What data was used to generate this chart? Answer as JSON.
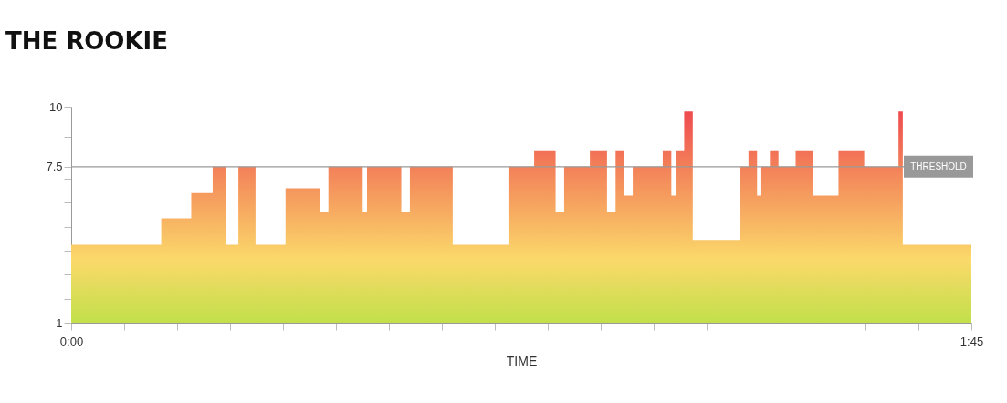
{
  "chart_data": {
    "type": "area",
    "title": "THE ROOKIE",
    "xlabel": "TIME",
    "x": [
      0,
      10.5,
      10.5,
      14,
      14,
      16.5,
      16.5,
      18,
      18,
      19.5,
      19.5,
      21.5,
      21.5,
      25,
      25,
      29,
      29,
      30,
      30,
      34,
      34,
      34.5,
      34.5,
      38.5,
      38.5,
      39.5,
      39.5,
      44.5,
      44.5,
      51,
      51,
      54,
      54,
      56.5,
      56.5,
      57.5,
      57.5,
      60.5,
      60.5,
      62.5,
      62.5,
      63.5,
      63.5,
      64.5,
      64.5,
      65.5,
      65.5,
      69,
      69,
      70,
      70,
      70.5,
      70.5,
      71.5,
      71.5,
      72.5,
      72.5,
      78,
      78,
      79,
      79,
      80,
      80,
      80.5,
      80.5,
      81.5,
      81.5,
      82.5,
      82.5,
      84.5,
      84.5,
      86.5,
      86.5,
      89.5,
      89.5,
      92.5,
      92.5,
      96.5,
      96.5,
      97,
      97,
      105
    ],
    "series": [
      {
        "color": "#ee4b4f",
        "values": [
          4.25,
          4.25,
          5.35,
          5.35,
          6.4,
          6.4,
          7.5,
          7.5,
          4.25,
          4.25,
          7.5,
          7.5,
          4.25,
          4.25,
          6.6,
          6.6,
          5.6,
          5.6,
          7.5,
          7.5,
          5.6,
          5.6,
          7.5,
          7.5,
          5.6,
          5.6,
          7.5,
          7.5,
          4.25,
          4.25,
          7.5,
          7.5,
          8.15,
          8.15,
          5.6,
          5.6,
          7.5,
          7.5,
          8.15,
          8.15,
          5.6,
          5.6,
          8.15,
          8.15,
          6.3,
          6.3,
          7.5,
          7.5,
          8.15,
          8.15,
          6.3,
          6.3,
          8.15,
          8.15,
          9.8,
          9.8,
          4.45,
          4.45,
          7.5,
          7.5,
          8.15,
          8.15,
          6.3,
          6.3,
          7.5,
          7.5,
          8.15,
          8.15,
          7.5,
          7.5,
          8.15,
          8.15,
          6.3,
          6.3,
          8.15,
          8.15,
          7.5,
          7.5,
          9.8,
          9.8,
          4.25,
          4.25
        ]
      }
    ],
    "xlim": [
      0,
      105
    ],
    "xticks": [
      {
        "value": 0,
        "label": "0:00"
      },
      {
        "value": 6.18,
        "label": null
      },
      {
        "value": 12.35,
        "label": null
      },
      {
        "value": 18.53,
        "label": null
      },
      {
        "value": 24.71,
        "label": null
      },
      {
        "value": 30.88,
        "label": null
      },
      {
        "value": 37.06,
        "label": null
      },
      {
        "value": 43.24,
        "label": null
      },
      {
        "value": 49.41,
        "label": null
      },
      {
        "value": 55.59,
        "label": null
      },
      {
        "value": 61.76,
        "label": null
      },
      {
        "value": 67.94,
        "label": null
      },
      {
        "value": 74.12,
        "label": null
      },
      {
        "value": 80.29,
        "label": null
      },
      {
        "value": 86.47,
        "label": null
      },
      {
        "value": 92.65,
        "label": null
      },
      {
        "value": 98.82,
        "label": null
      },
      {
        "value": 105,
        "label": "1:45"
      }
    ],
    "ylim": [
      1,
      10
    ],
    "yticks": [
      1,
      {
        "value": 2,
        "label": null
      },
      {
        "value": 3,
        "label": null
      },
      {
        "value": 4,
        "label": null
      },
      {
        "value": 5,
        "label": null
      },
      {
        "value": 6,
        "label": null
      },
      {
        "value": 7,
        "label": null
      },
      7.5,
      {
        "value": 8.75,
        "label": null
      },
      10
    ],
    "ref_lines": [
      {
        "axis": "y",
        "value": 7.5,
        "label": "THRESHOLD",
        "color": "#999999"
      }
    ],
    "grid": false
  }
}
